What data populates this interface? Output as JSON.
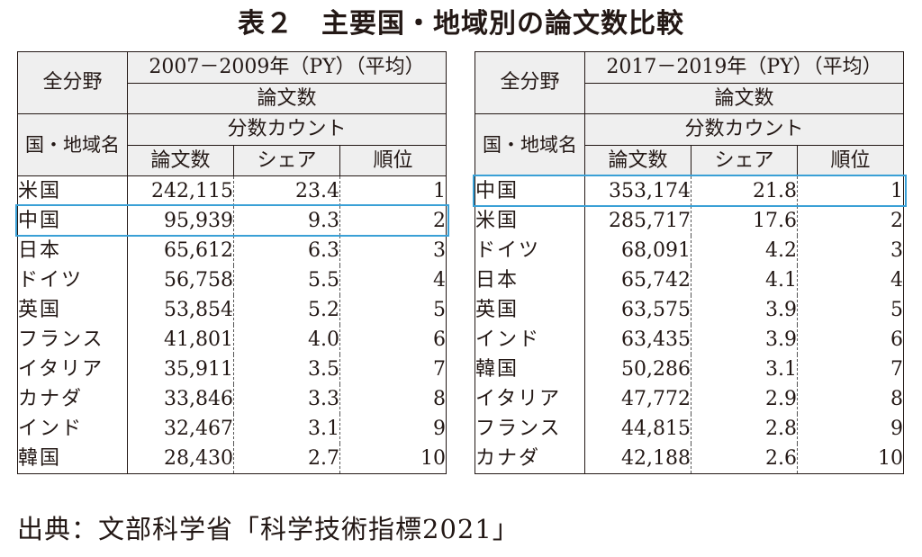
{
  "title": "表２　主要国・地域別の論文数比較",
  "headers": {
    "field": "全分野",
    "metric": "論文数",
    "count_method": "分数カウント",
    "country": "国・地域名",
    "col_papers": "論文数",
    "col_share": "シェア",
    "col_rank": "順位"
  },
  "tables": [
    {
      "period": "2007－2009年（PY）（平均）",
      "highlight_row": 1,
      "rows": [
        {
          "country": "米国",
          "papers": "242,115",
          "share": "23.4",
          "rank": "1"
        },
        {
          "country": "中国",
          "papers": "95,939",
          "share": "9.3",
          "rank": "2"
        },
        {
          "country": "日本",
          "papers": "65,612",
          "share": "6.3",
          "rank": "3"
        },
        {
          "country": "ドイツ",
          "papers": "56,758",
          "share": "5.5",
          "rank": "4"
        },
        {
          "country": "英国",
          "papers": "53,854",
          "share": "5.2",
          "rank": "5"
        },
        {
          "country": "フランス",
          "papers": "41,801",
          "share": "4.0",
          "rank": "6"
        },
        {
          "country": "イタリア",
          "papers": "35,911",
          "share": "3.5",
          "rank": "7"
        },
        {
          "country": "カナダ",
          "papers": "33,846",
          "share": "3.3",
          "rank": "8"
        },
        {
          "country": "インド",
          "papers": "32,467",
          "share": "3.1",
          "rank": "9"
        },
        {
          "country": "韓国",
          "papers": "28,430",
          "share": "2.7",
          "rank": "10"
        }
      ]
    },
    {
      "period": "2017－2019年（PY）（平均）",
      "highlight_row": 0,
      "rows": [
        {
          "country": "中国",
          "papers": "353,174",
          "share": "21.8",
          "rank": "1"
        },
        {
          "country": "米国",
          "papers": "285,717",
          "share": "17.6",
          "rank": "2"
        },
        {
          "country": "ドイツ",
          "papers": "68,091",
          "share": "4.2",
          "rank": "3"
        },
        {
          "country": "日本",
          "papers": "65,742",
          "share": "4.1",
          "rank": "4"
        },
        {
          "country": "英国",
          "papers": "63,575",
          "share": "3.9",
          "rank": "5"
        },
        {
          "country": "インド",
          "papers": "63,435",
          "share": "3.9",
          "rank": "6"
        },
        {
          "country": "韓国",
          "papers": "50,286",
          "share": "3.1",
          "rank": "7"
        },
        {
          "country": "イタリア",
          "papers": "47,772",
          "share": "2.9",
          "rank": "8"
        },
        {
          "country": "フランス",
          "papers": "44,815",
          "share": "2.8",
          "rank": "9"
        },
        {
          "country": "カナダ",
          "papers": "42,188",
          "share": "2.6",
          "rank": "10"
        }
      ]
    }
  ],
  "highlight_color": "#3aa0d6",
  "source": "出典：文部科学省「科学技術指標2021」"
}
